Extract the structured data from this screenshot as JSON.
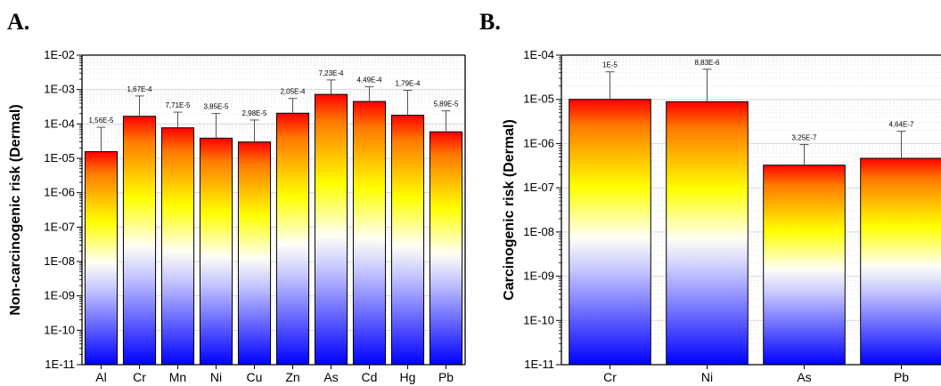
{
  "panels": {
    "a": {
      "letter": "A."
    },
    "b": {
      "letter": "B."
    }
  },
  "chart_data": [
    {
      "type": "bar",
      "ylabel": "Non-carcinogenic risk (Dermal)",
      "yscale": "log",
      "ylim": [
        1e-11,
        0.01
      ],
      "ytick_labels": [
        "1E-11",
        "1E-10",
        "1E-09",
        "1E-08",
        "1E-07",
        "1E-06",
        "1E-05",
        "1E-04",
        "1E-03",
        "1E-02"
      ],
      "categories": [
        "Al",
        "Cr",
        "Mn",
        "Ni",
        "Cu",
        "Zn",
        "As",
        "Cd",
        "Hg",
        "Pb"
      ],
      "values": [
        1.56e-05,
        0.000167,
        7.71e-05,
        3.85e-05,
        2.98e-05,
        0.000205,
        0.000723,
        0.000449,
        0.000179,
        5.89e-05
      ],
      "error_upper": [
        8e-05,
        0.00065,
        0.00022,
        0.0002,
        0.00013,
        0.00055,
        0.0019,
        0.0012,
        0.00095,
        0.00024
      ],
      "data_labels": [
        "1,56E-5",
        "1,67E-4",
        "7,71E-5",
        "3,85E-5",
        "2,98E-5",
        "2,05E-4",
        "7,23E-4",
        "4,49E-4",
        "1,79E-4",
        "5,89E-5"
      ],
      "bar_gradient": [
        "#ff0000",
        "#ff8000",
        "#ffff00",
        "#ffffff",
        "#0000ff"
      ],
      "grid": true
    },
    {
      "type": "bar",
      "ylabel": "Carcinogenic risk (Dermal)",
      "yscale": "log",
      "ylim": [
        1e-11,
        0.0001
      ],
      "ytick_labels": [
        "1E-11",
        "1E-10",
        "1E-09",
        "1E-08",
        "1E-07",
        "1E-06",
        "1E-05",
        "1E-04"
      ],
      "categories": [
        "Cr",
        "Ni",
        "As",
        "Pb"
      ],
      "values": [
        1e-05,
        8.83e-06,
        3.25e-07,
        4.64e-07
      ],
      "error_upper": [
        4.2e-05,
        4.8e-05,
        9.5e-07,
        1.9e-06
      ],
      "data_labels": [
        "1E-5",
        "8,83E-6",
        "3,25E-7",
        "4,64E-7"
      ],
      "bar_gradient": [
        "#ff0000",
        "#ff8000",
        "#ffff00",
        "#ffffff",
        "#0000ff"
      ],
      "grid": true
    }
  ]
}
